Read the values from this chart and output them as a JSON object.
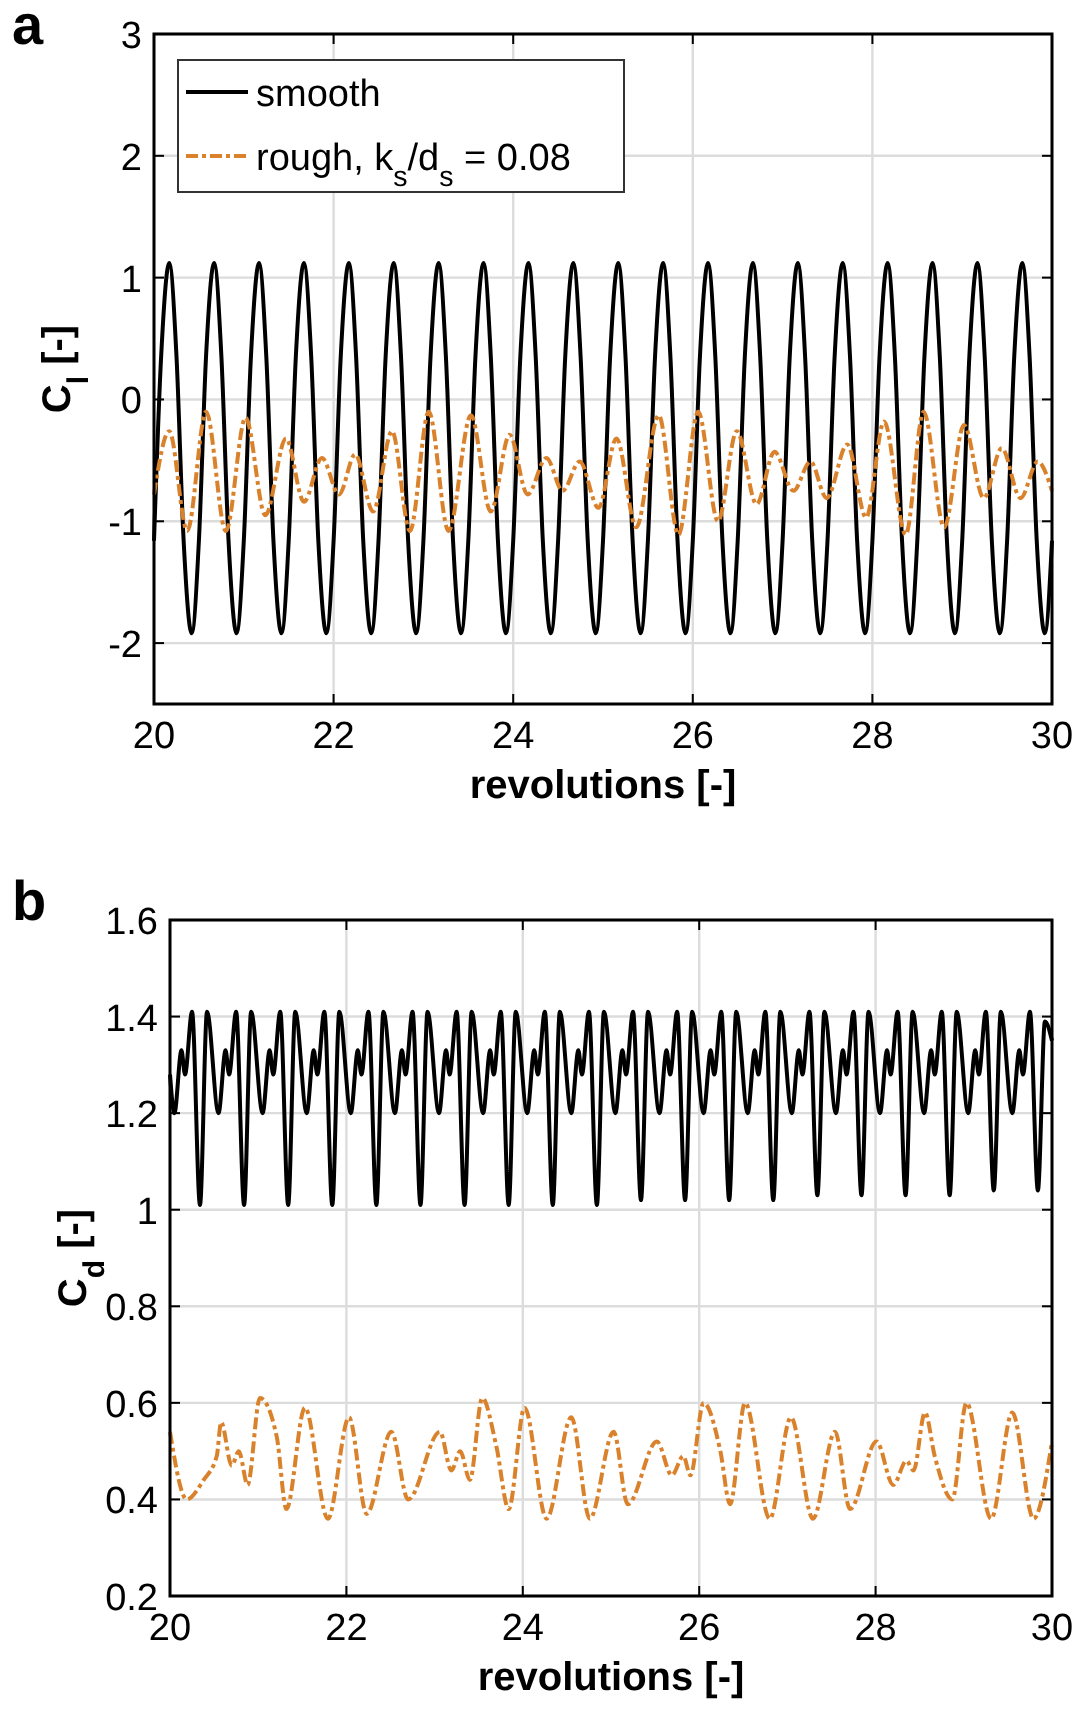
{
  "chart_data": [
    {
      "type": "line",
      "annotations": [
        "a"
      ],
      "xlabel": "revolutions [-]",
      "ylabel": "C$_{l}$ [-]",
      "xlim": [
        20,
        30
      ],
      "xticks": [
        20,
        22,
        24,
        26,
        28,
        30
      ],
      "ylim": [
        -2.5,
        3
      ],
      "yticks": [
        -2,
        -1,
        0,
        1,
        2,
        3
      ],
      "grid": true,
      "legend": "top left",
      "series": [
        {
          "name": "smooth",
          "color": "#000000",
          "line_style": "solid",
          "x": [
            20,
            20.08,
            20.17,
            20.25,
            20.33,
            20.42,
            20.5,
            20.58,
            20.67,
            20.75,
            20.83,
            20.92,
            21,
            21.08,
            21.17,
            21.25,
            21.33,
            21.42,
            21.5,
            21.58,
            21.67,
            21.75,
            21.83,
            21.92,
            22,
            22.08,
            22.17,
            22.25,
            22.33,
            22.42,
            22.5,
            22.58,
            22.67,
            22.75,
            22.83,
            22.92,
            23,
            23.08,
            23.17,
            23.25,
            23.33,
            23.42,
            23.5,
            23.58,
            23.67,
            23.75,
            23.83,
            23.92,
            24,
            24.08,
            24.17,
            24.25,
            24.33,
            24.42,
            24.5,
            24.58,
            24.67,
            24.75,
            24.83,
            24.92,
            25,
            25.08,
            25.17,
            25.25,
            25.33,
            25.42,
            25.5,
            25.58,
            25.67,
            25.75,
            25.83,
            25.92,
            26,
            26.08,
            26.17,
            26.25,
            26.33,
            26.42,
            26.5,
            26.58,
            26.67,
            26.75,
            26.83,
            26.92,
            27,
            27.08,
            27.17,
            27.25,
            27.33,
            27.42,
            27.5,
            27.58,
            27.67,
            27.75,
            27.83,
            27.92,
            28,
            28.08,
            28.17,
            28.25,
            28.33,
            28.42,
            28.5,
            28.58,
            28.67,
            28.75,
            28.83,
            28.92,
            29,
            29.08,
            29.17,
            29.25,
            29.33,
            29.42,
            29.5,
            29.58,
            29.67,
            29.75,
            29.83,
            29.92,
            30
          ],
          "values": [
            -1.16,
            0.36,
            1.12,
            0.36,
            -1.16,
            -1.92,
            -1.16,
            0.36,
            1.12,
            0.36,
            -1.16,
            -1.92,
            -1.16,
            0.36,
            1.12,
            0.36,
            -1.16,
            -1.92,
            -1.16,
            0.36,
            1.12,
            0.36,
            -1.16,
            -1.92,
            -1.16,
            0.36,
            1.12,
            0.36,
            -1.16,
            -1.92,
            -1.16,
            0.36,
            1.12,
            0.36,
            -1.16,
            -1.92,
            -1.16,
            0.36,
            1.12,
            0.36,
            -1.16,
            -1.92,
            -1.16,
            0.36,
            1.12,
            0.36,
            -1.16,
            -1.92,
            -1.16,
            0.36,
            1.12,
            0.36,
            -1.16,
            -1.92,
            -1.16,
            0.36,
            1.12,
            0.36,
            -1.16,
            -1.92,
            -1.16,
            0.36,
            1.12,
            0.36,
            -1.16,
            -1.92,
            -1.16,
            0.36,
            1.12,
            0.36,
            -1.16,
            -1.92,
            -1.16,
            0.36,
            1.12,
            0.36,
            -1.16,
            -1.92,
            -1.16,
            0.36,
            1.12,
            0.36,
            -1.16,
            -1.92,
            -1.16,
            0.36,
            1.12,
            0.36,
            -1.16,
            -1.92,
            -1.16,
            0.36,
            1.12,
            0.36,
            -1.16,
            -1.92,
            -1.16,
            0.36,
            1.12,
            0.36,
            -1.16,
            -1.92,
            -1.16,
            0.36,
            1.12,
            0.36,
            -1.16,
            -1.92,
            -1.16,
            0.36,
            1.12,
            0.36,
            -1.16,
            -1.92,
            -1.16,
            0.36,
            1.12,
            0.36,
            -1.16,
            -1.92,
            -1.16
          ]
        },
        {
          "name": "rough, k$_{s}$/d$_{s}$ = 0.08",
          "color": "#d9822b",
          "line_style": "dashed",
          "x": [
            20,
            20.17,
            20.37,
            20.58,
            20.8,
            21.02,
            21.24,
            21.47,
            21.67,
            21.87,
            22.06,
            22.24,
            22.44,
            22.65,
            22.85,
            23.06,
            23.28,
            23.53,
            23.75,
            23.96,
            24.16,
            24.37,
            24.55,
            24.74,
            24.95,
            25.15,
            25.37,
            25.62,
            25.84,
            26.06,
            26.28,
            26.49,
            26.71,
            26.91,
            27.12,
            27.31,
            27.49,
            27.72,
            27.93,
            28.13,
            28.37,
            28.57,
            28.8,
            29.02,
            29.24,
            29.44,
            29.65,
            29.84,
            30
          ],
          "values": [
            -0.78,
            -0.26,
            -1.08,
            -0.1,
            -1.08,
            -0.15,
            -0.95,
            -0.32,
            -0.84,
            -0.48,
            -0.78,
            -0.45,
            -0.92,
            -0.26,
            -1.08,
            -0.1,
            -1.08,
            -0.13,
            -0.92,
            -0.29,
            -0.78,
            -0.48,
            -0.75,
            -0.51,
            -0.89,
            -0.32,
            -1.05,
            -0.13,
            -1.11,
            -0.1,
            -1,
            -0.26,
            -0.86,
            -0.43,
            -0.75,
            -0.51,
            -0.81,
            -0.37,
            -0.97,
            -0.18,
            -1.11,
            -0.1,
            -1.05,
            -0.21,
            -0.81,
            -0.4,
            -0.81,
            -0.51,
            -0.75
          ]
        }
      ]
    },
    {
      "type": "line",
      "annotations": [
        "b"
      ],
      "xlabel": "revolutions [-]",
      "ylabel": "C$_{d}$ [-]",
      "xlim": [
        20,
        30
      ],
      "xticks": [
        20,
        22,
        24,
        26,
        28,
        30
      ],
      "ylim": [
        0.2,
        1.6
      ],
      "yticks": [
        0.2,
        0.4,
        0.6,
        0.8,
        1,
        1.2,
        1.4,
        1.6
      ],
      "grid": true,
      "series": [
        {
          "color": "#000000",
          "line_style": "solid",
          "x": [
            20,
            20.05,
            20.13,
            20.17,
            20.25,
            20.34,
            20.42,
            20.55,
            20.63,
            20.67,
            20.75,
            20.84,
            20.92,
            21.05,
            21.13,
            21.17,
            21.25,
            21.34,
            21.42,
            21.55,
            21.63,
            21.67,
            21.75,
            21.84,
            21.92,
            22.05,
            22.13,
            22.17,
            22.25,
            22.34,
            22.42,
            22.55,
            22.63,
            22.67,
            22.75,
            22.84,
            22.92,
            23.05,
            23.13,
            23.17,
            23.25,
            23.34,
            23.42,
            23.55,
            23.63,
            23.67,
            23.75,
            23.84,
            23.92,
            24.05,
            24.13,
            24.17,
            24.25,
            24.34,
            24.42,
            24.55,
            24.63,
            24.67,
            24.75,
            24.84,
            24.92,
            25.05,
            25.13,
            25.17,
            25.25,
            25.34,
            25.42,
            25.55,
            25.63,
            25.67,
            25.75,
            25.84,
            25.92,
            26.05,
            26.13,
            26.17,
            26.25,
            26.34,
            26.42,
            26.55,
            26.63,
            26.67,
            26.75,
            26.84,
            26.92,
            27.05,
            27.13,
            27.17,
            27.25,
            27.34,
            27.42,
            27.55,
            27.63,
            27.67,
            27.75,
            27.84,
            27.92,
            28.05,
            28.13,
            28.17,
            28.25,
            28.34,
            28.42,
            28.55,
            28.63,
            28.67,
            28.75,
            28.84,
            28.92,
            29.05,
            29.13,
            29.17,
            29.25,
            29.34,
            29.42,
            29.55,
            29.63,
            29.67,
            29.75,
            29.84,
            29.92,
            30
          ],
          "values": [
            1.28,
            1.2,
            1.33,
            1.28,
            1.41,
            1.01,
            1.41,
            1.2,
            1.33,
            1.28,
            1.41,
            1.01,
            1.41,
            1.2,
            1.33,
            1.28,
            1.41,
            1.01,
            1.41,
            1.2,
            1.33,
            1.28,
            1.41,
            1.01,
            1.41,
            1.2,
            1.33,
            1.28,
            1.41,
            1.01,
            1.41,
            1.2,
            1.33,
            1.28,
            1.41,
            1.01,
            1.41,
            1.2,
            1.33,
            1.28,
            1.41,
            1.01,
            1.41,
            1.2,
            1.33,
            1.28,
            1.41,
            1.01,
            1.41,
            1.2,
            1.33,
            1.28,
            1.41,
            1.01,
            1.41,
            1.2,
            1.33,
            1.28,
            1.41,
            1.01,
            1.41,
            1.2,
            1.33,
            1.28,
            1.41,
            1.02,
            1.41,
            1.2,
            1.33,
            1.28,
            1.41,
            1.02,
            1.41,
            1.2,
            1.33,
            1.28,
            1.41,
            1.02,
            1.41,
            1.2,
            1.33,
            1.28,
            1.41,
            1.02,
            1.41,
            1.2,
            1.33,
            1.28,
            1.41,
            1.03,
            1.41,
            1.2,
            1.33,
            1.28,
            1.41,
            1.03,
            1.41,
            1.2,
            1.33,
            1.28,
            1.41,
            1.03,
            1.41,
            1.2,
            1.33,
            1.28,
            1.41,
            1.03,
            1.41,
            1.2,
            1.33,
            1.28,
            1.41,
            1.04,
            1.41,
            1.2,
            1.33,
            1.28,
            1.41,
            1.04,
            1.39,
            1.35
          ]
        },
        {
          "color": "#d9822b",
          "line_style": "dashed",
          "x": [
            20,
            20.19,
            20.38,
            20.53,
            20.58,
            20.7,
            20.78,
            20.88,
            21.02,
            21.21,
            21.32,
            21.53,
            21.79,
            22.03,
            22.23,
            22.51,
            22.7,
            23.06,
            23.19,
            23.29,
            23.4,
            23.54,
            23.7,
            23.84,
            24.02,
            24.27,
            24.55,
            24.76,
            25.03,
            25.19,
            25.52,
            25.69,
            25.82,
            25.9,
            26.05,
            26.24,
            26.35,
            26.52,
            26.8,
            27.04,
            27.29,
            27.54,
            27.71,
            28.01,
            28.2,
            28.35,
            28.43,
            28.56,
            28.67,
            28.87,
            29.03,
            29.31,
            29.55,
            29.79,
            30
          ],
          "values": [
            0.54,
            0.4,
            0.44,
            0.49,
            0.56,
            0.47,
            0.5,
            0.43,
            0.61,
            0.53,
            0.38,
            0.59,
            0.36,
            0.57,
            0.37,
            0.54,
            0.4,
            0.54,
            0.46,
            0.5,
            0.44,
            0.61,
            0.51,
            0.38,
            0.59,
            0.36,
            0.57,
            0.36,
            0.54,
            0.39,
            0.52,
            0.45,
            0.49,
            0.45,
            0.6,
            0.5,
            0.39,
            0.6,
            0.36,
            0.57,
            0.36,
            0.54,
            0.38,
            0.52,
            0.43,
            0.48,
            0.46,
            0.58,
            0.49,
            0.4,
            0.6,
            0.36,
            0.58,
            0.36,
            0.52
          ]
        }
      ]
    }
  ]
}
